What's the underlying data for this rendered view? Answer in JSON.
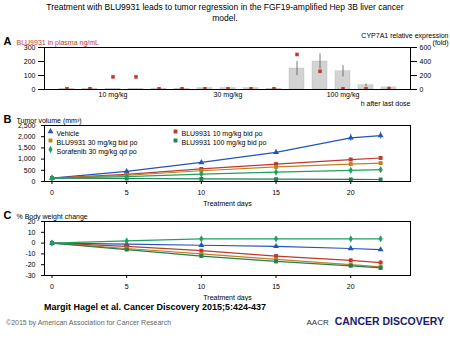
{
  "title": "Treatment with BLU9931 leads to tumor regression in the FGF19-amplified Hep 3B liver cancer\nmodel.",
  "annotations": [
    "Margit Hagel et al. Cancer Discovery 2015;5:424-437",
    "©2015 by American Association for Cancer Research",
    "AACR",
    "CANCER DISCOVERY"
  ],
  "chart_data": [
    {
      "type": "bar",
      "title": "A",
      "categories": [
        null,
        null,
        "10 mg/kg",
        null,
        null,
        null,
        null,
        "30 mg/kg",
        null,
        null,
        null,
        null,
        "100 mg/kg",
        null,
        null
      ],
      "series": [
        {
          "type": "bar",
          "color": "#d3d3d3",
          "values": [
            5,
            5,
            5,
            5,
            5,
            5,
            10,
            10,
            10,
            5,
            150,
            200,
            130,
            30,
            15
          ],
          "errors": [
            null,
            null,
            null,
            null,
            null,
            null,
            null,
            null,
            null,
            null,
            50,
            55,
            40,
            10,
            5
          ]
        },
        {
          "type": "scatter",
          "color": "#c0392b",
          "marker": "square",
          "values": [
            5,
            5,
            90,
            90,
            5,
            5,
            5,
            5,
            5,
            5,
            250,
            130,
            5,
            5,
            5
          ]
        }
      ],
      "ylabel": "BLU9931 in plasma ng/mL",
      "y2label": "CYP7A1 relative expression\n(fold)",
      "ylim": [
        0,
        300
      ],
      "yticks": [
        0,
        100,
        200,
        300
      ],
      "y2lim": [
        0,
        600
      ],
      "y2ticks": [
        0,
        200,
        400,
        600
      ],
      "annotations": [
        "h after last dose"
      ],
      "grid": false
    },
    {
      "type": "line",
      "title": "B",
      "x": [
        0,
        5,
        10,
        15,
        20,
        22
      ],
      "xlabel": "Treatment days",
      "ylabel": "Tumor volume (mm³)",
      "xlim": [
        -0.5,
        24
      ],
      "xticks": [
        0,
        5,
        10,
        15,
        20
      ],
      "ylim": [
        0,
        2500
      ],
      "yticks": [
        0,
        500,
        {
          "value": 1000,
          "label": "1,000"
        },
        {
          "value": 1500,
          "label": "1,500"
        },
        {
          "value": 2000,
          "label": "2,000"
        },
        {
          "value": 2500,
          "label": "2,500"
        }
      ],
      "legend": "upper left",
      "grid": false,
      "series": [
        {
          "name": "Vehicle",
          "color": "#2255bb",
          "marker": "triangle",
          "line_style": "solid",
          "values": [
            150,
            450,
            850,
            1300,
            1950,
            2050
          ],
          "errors": [
            20,
            36,
            68,
            104,
            156,
            164
          ]
        },
        {
          "name": "BLU9931 10 mg/kg bid po",
          "color": "#c0392b",
          "marker": "square",
          "line_style": "solid",
          "values": [
            150,
            320,
            560,
            780,
            980,
            1050
          ],
          "errors": [
            20,
            25.6,
            44.8,
            62.4,
            78.4,
            84
          ]
        },
        {
          "name": "BLU9931 30 mg/kg bid po",
          "color": "#c08020",
          "marker": "square",
          "line_style": "solid",
          "values": [
            150,
            280,
            480,
            650,
            780,
            820
          ],
          "errors": [
            20,
            22.4,
            38.4,
            52,
            62.4,
            65.6
          ]
        },
        {
          "name": "BLU9931 100 mg/kg bid po",
          "color": "#208050",
          "marker": "square",
          "line_style": "solid",
          "values": [
            150,
            135,
            115,
            105,
            95,
            90
          ],
          "errors": [
            20,
            20,
            20,
            20,
            20,
            20
          ]
        },
        {
          "name": "Sorafenib 30 mg/kg qd po",
          "color": "#20a060",
          "marker": "diamond",
          "line_style": "solid",
          "values": [
            150,
            220,
            330,
            420,
            500,
            530
          ],
          "errors": [
            20,
            20,
            26.4,
            33.6,
            40,
            42.4
          ]
        }
      ]
    },
    {
      "type": "line",
      "title": "C",
      "x": [
        0,
        5,
        10,
        15,
        20,
        22
      ],
      "xlabel": "Treatment days",
      "ylabel": "% Body weight change",
      "xlim": [
        -0.5,
        24
      ],
      "xticks": [
        0,
        5,
        10,
        15,
        20
      ],
      "ylim": [
        -30,
        20
      ],
      "yticks": [
        -30,
        -20,
        -10,
        0,
        10,
        20
      ],
      "grid": false,
      "series": [
        {
          "color": "#2255bb",
          "marker": "triangle",
          "line_style": "solid",
          "values": [
            0,
            -1,
            -2,
            -3,
            -5,
            -6
          ],
          "errors": [
            0.8,
            0.85,
            0.9,
            0.95,
            1.05,
            1.1
          ]
        },
        {
          "color": "#c0392b",
          "marker": "square",
          "line_style": "solid",
          "values": [
            0,
            -3,
            -7,
            -12,
            -16,
            -18
          ],
          "errors": [
            0.8,
            0.95,
            1.15,
            1.4,
            1.6,
            1.7
          ]
        },
        {
          "color": "#c08020",
          "marker": "square",
          "line_style": "solid",
          "values": [
            0,
            -5,
            -10,
            -15,
            -20,
            -22
          ],
          "errors": [
            0.8,
            1.05,
            1.3,
            1.55,
            1.8,
            1.9
          ]
        },
        {
          "color": "#208050",
          "marker": "square",
          "line_style": "solid",
          "values": [
            0,
            -6,
            -12,
            -17,
            -21,
            -23
          ],
          "errors": [
            0.8,
            1.1,
            1.4,
            1.65,
            1.85,
            1.95
          ]
        },
        {
          "color": "#20a060",
          "marker": "diamond",
          "line_style": "solid",
          "values": [
            0,
            2,
            4,
            4,
            4,
            4
          ],
          "errors": [
            0.8,
            0.9,
            1.0,
            1.0,
            1.0,
            1.0
          ]
        }
      ]
    }
  ]
}
